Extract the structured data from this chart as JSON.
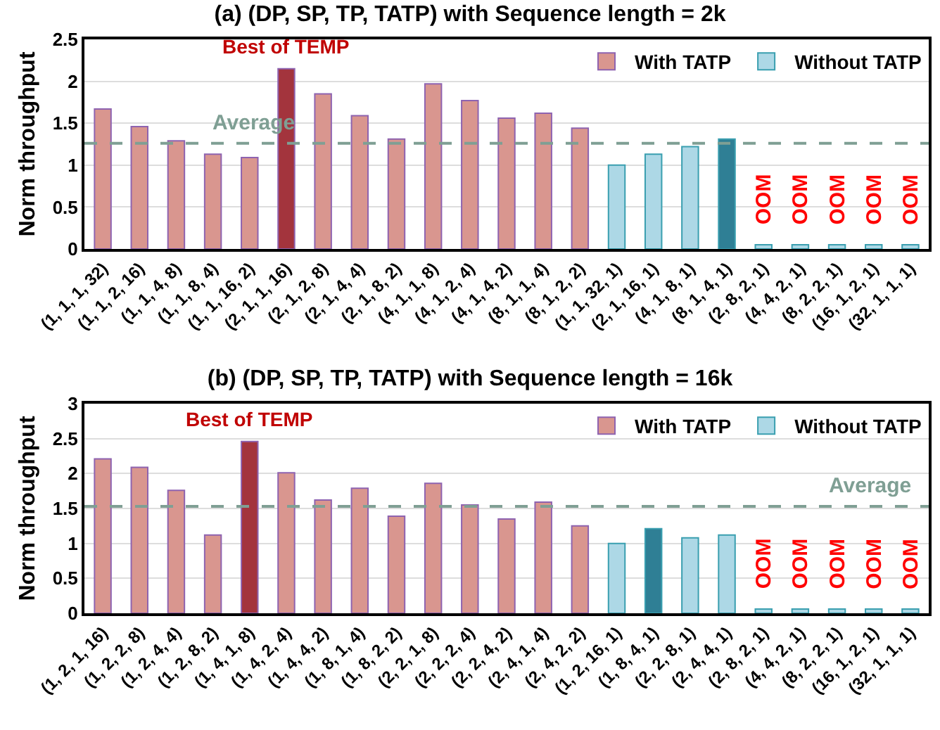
{
  "chart_data": [
    {
      "type": "bar",
      "title": "(a) (DP, SP, TP, TATP) with Sequence length = 2k",
      "ylabel": "Norm throughput",
      "categories": [
        "(1, 1, 1, 32)",
        "(1, 1, 2, 16)",
        "(1, 1, 4, 8)",
        "(1, 1, 8, 4)",
        "(1, 1, 16, 2)",
        "(2, 1, 1, 16)",
        "(2, 1, 2, 8)",
        "(2, 1, 4, 4)",
        "(2, 1, 8, 2)",
        "(4, 1, 1, 8)",
        "(4, 1, 2, 4)",
        "(4, 1, 4, 2)",
        "(8, 1, 1, 4)",
        "(8, 1, 2, 2)",
        "(1, 1, 32, 1)",
        "(2, 1, 16, 1)",
        "(4, 1, 8, 1)",
        "(8, 1, 4, 1)",
        "(2, 8, 2, 1)",
        "(4, 4, 2, 1)",
        "(8, 2, 2, 1)",
        "(16, 1, 2, 1)",
        "(32, 1, 1, 1)"
      ],
      "series": [
        {
          "name": "With TATP",
          "color": "#d9968f",
          "colors": [
            "#d9968f",
            "#d9968f",
            "#d9968f",
            "#d9968f",
            "#d9968f",
            "#a3343d",
            "#d9968f",
            "#d9968f",
            "#d9968f",
            "#d9968f",
            "#d9968f",
            "#d9968f",
            "#d9968f",
            "#d9968f",
            null,
            null,
            null,
            null,
            null,
            null,
            null,
            null,
            null
          ],
          "values": [
            1.67,
            1.46,
            1.29,
            1.13,
            1.09,
            2.15,
            1.85,
            1.59,
            1.31,
            1.97,
            1.77,
            1.56,
            1.62,
            1.44,
            null,
            null,
            null,
            null,
            null,
            null,
            null,
            null,
            null
          ]
        },
        {
          "name": "Without TATP",
          "color": "#add8e6",
          "colors": [
            null,
            null,
            null,
            null,
            null,
            null,
            null,
            null,
            null,
            null,
            null,
            null,
            null,
            null,
            "#add8e6",
            "#add8e6",
            "#add8e6",
            "#2f7f95",
            "#add8e6",
            "#add8e6",
            "#add8e6",
            "#add8e6",
            "#add8e6"
          ],
          "values": [
            null,
            null,
            null,
            null,
            null,
            null,
            null,
            null,
            null,
            null,
            null,
            null,
            null,
            null,
            1.0,
            1.13,
            1.22,
            1.31,
            0.05,
            0.05,
            0.05,
            0.05,
            0.05
          ]
        }
      ],
      "ylim": [
        0,
        2.5
      ],
      "yticks": [
        0,
        0.5,
        1,
        1.5,
        2,
        2.5
      ],
      "grid": "y",
      "legend": "top right",
      "ref_lines": [
        {
          "axis": "y",
          "value": 1.26,
          "label": "Average",
          "color": "#7f9f94",
          "line_style": "dashed"
        }
      ],
      "annotations": [
        {
          "text": "Best of TEMP",
          "x": "(2, 1, 1, 16)",
          "y": 2.15
        },
        {
          "text": "OOM",
          "x": "(2, 8, 2, 1)",
          "y": 0.05
        },
        {
          "text": "OOM",
          "x": "(4, 4, 2, 1)",
          "y": 0.05
        },
        {
          "text": "OOM",
          "x": "(8, 2, 2, 1)",
          "y": 0.05
        },
        {
          "text": "OOM",
          "x": "(16, 1, 2, 1)",
          "y": 0.05
        },
        {
          "text": "OOM",
          "x": "(32, 1, 1, 1)",
          "y": 0.05
        }
      ]
    },
    {
      "type": "bar",
      "title": "(b) (DP, SP, TP, TATP) with Sequence length = 16k",
      "ylabel": "Norm throughput",
      "categories": [
        "(1, 2, 1, 16)",
        "(1, 2, 2, 8)",
        "(1, 2, 4, 4)",
        "(1, 2, 8, 2)",
        "(1, 4, 1, 8)",
        "(1, 4, 2, 4)",
        "(1, 4, 4, 2)",
        "(1, 8, 1, 4)",
        "(1, 8, 2, 2)",
        "(2, 2, 1, 8)",
        "(2, 2, 2, 4)",
        "(2, 2, 4, 2)",
        "(2, 4, 1, 4)",
        "(2, 4, 2, 2)",
        "(1, 2, 16, 1)",
        "(1, 8, 4, 1)",
        "(2, 2, 8, 1)",
        "(2, 4, 4, 1)",
        "(2, 8, 2, 1)",
        "(4, 4, 2, 1)",
        "(8, 2, 2, 1)",
        "(16, 1, 2, 1)",
        "(32, 1, 1, 1)"
      ],
      "series": [
        {
          "name": "With TATP",
          "color": "#d9968f",
          "colors": [
            "#d9968f",
            "#d9968f",
            "#d9968f",
            "#d9968f",
            "#a3343d",
            "#d9968f",
            "#d9968f",
            "#d9968f",
            "#d9968f",
            "#d9968f",
            "#d9968f",
            "#d9968f",
            "#d9968f",
            "#d9968f",
            null,
            null,
            null,
            null,
            null,
            null,
            null,
            null,
            null
          ],
          "values": [
            2.21,
            2.09,
            1.76,
            1.12,
            2.46,
            2.01,
            1.62,
            1.79,
            1.39,
            1.86,
            1.55,
            1.35,
            1.59,
            1.25,
            null,
            null,
            null,
            null,
            null,
            null,
            null,
            null,
            null
          ]
        },
        {
          "name": "Without TATP",
          "color": "#add8e6",
          "colors": [
            null,
            null,
            null,
            null,
            null,
            null,
            null,
            null,
            null,
            null,
            null,
            null,
            null,
            null,
            "#add8e6",
            "#2f7f95",
            "#add8e6",
            "#add8e6",
            "#add8e6",
            "#add8e6",
            "#add8e6",
            "#add8e6",
            "#add8e6"
          ],
          "values": [
            null,
            null,
            null,
            null,
            null,
            null,
            null,
            null,
            null,
            null,
            null,
            null,
            null,
            null,
            1.0,
            1.21,
            1.08,
            1.12,
            0.06,
            0.06,
            0.06,
            0.06,
            0.06
          ]
        }
      ],
      "ylim": [
        0,
        3
      ],
      "yticks": [
        0,
        0.5,
        1,
        1.5,
        2,
        2.5,
        3
      ],
      "grid": "y",
      "legend": "top right",
      "ref_lines": [
        {
          "axis": "y",
          "value": 1.53,
          "label": "Average",
          "color": "#7f9f94",
          "line_style": "dashed"
        }
      ],
      "annotations": [
        {
          "text": "Best of TEMP",
          "x": "(1, 4, 1, 8)",
          "y": 2.46
        },
        {
          "text": "OOM",
          "x": "(2, 8, 2, 1)",
          "y": 0.06
        },
        {
          "text": "OOM",
          "x": "(4, 4, 2, 1)",
          "y": 0.06
        },
        {
          "text": "OOM",
          "x": "(8, 2, 2, 1)",
          "y": 0.06
        },
        {
          "text": "OOM",
          "x": "(16, 1, 2, 1)",
          "y": 0.06
        },
        {
          "text": "OOM",
          "x": "(32, 1, 1, 1)",
          "y": 0.06
        }
      ]
    }
  ]
}
